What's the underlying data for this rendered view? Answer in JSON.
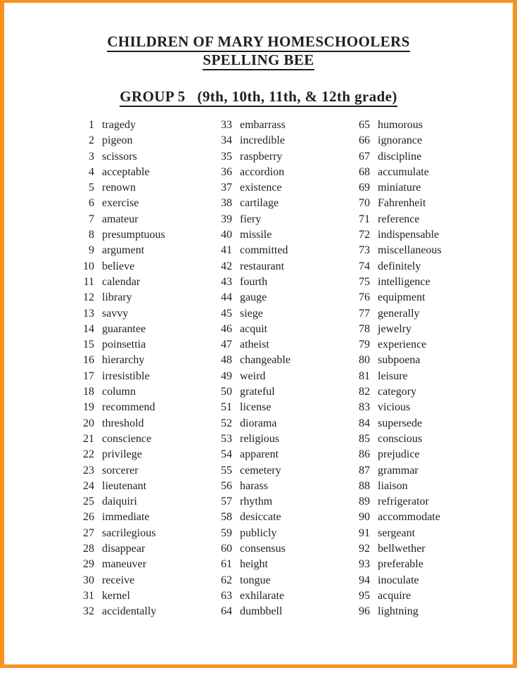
{
  "page": {
    "border_color": "#F7941E",
    "background_color": "#FFFFFF",
    "text_color": "#1F1F1F"
  },
  "header": {
    "title_line1": "CHILDREN OF MARY HOMESCHOOLERS",
    "title_line2": "SPELLING BEE",
    "group_label": "GROUP 5",
    "grade_range": "(9th, 10th, 11th, & 12th grade)"
  },
  "word_list": {
    "columns": [
      {
        "entries": [
          {
            "n": 1,
            "word": "tragedy"
          },
          {
            "n": 2,
            "word": "pigeon"
          },
          {
            "n": 3,
            "word": "scissors"
          },
          {
            "n": 4,
            "word": "acceptable"
          },
          {
            "n": 5,
            "word": "renown"
          },
          {
            "n": 6,
            "word": "exercise"
          },
          {
            "n": 7,
            "word": "amateur"
          },
          {
            "n": 8,
            "word": "presumptuous"
          },
          {
            "n": 9,
            "word": "argument"
          },
          {
            "n": 10,
            "word": "believe"
          },
          {
            "n": 11,
            "word": "calendar"
          },
          {
            "n": 12,
            "word": "library"
          },
          {
            "n": 13,
            "word": "savvy"
          },
          {
            "n": 14,
            "word": "guarantee"
          },
          {
            "n": 15,
            "word": "poinsettia"
          },
          {
            "n": 16,
            "word": "hierarchy"
          },
          {
            "n": 17,
            "word": "irresistible"
          },
          {
            "n": 18,
            "word": "column"
          },
          {
            "n": 19,
            "word": "recommend"
          },
          {
            "n": 20,
            "word": "threshold"
          },
          {
            "n": 21,
            "word": "conscience"
          },
          {
            "n": 22,
            "word": "privilege"
          },
          {
            "n": 23,
            "word": "sorcerer"
          },
          {
            "n": 24,
            "word": "lieutenant"
          },
          {
            "n": 25,
            "word": "daiquiri"
          },
          {
            "n": 26,
            "word": "immediate"
          },
          {
            "n": 27,
            "word": "sacrilegious"
          },
          {
            "n": 28,
            "word": "disappear"
          },
          {
            "n": 29,
            "word": "maneuver"
          },
          {
            "n": 30,
            "word": "receive"
          },
          {
            "n": 31,
            "word": "kernel"
          },
          {
            "n": 32,
            "word": "accidentally"
          }
        ]
      },
      {
        "entries": [
          {
            "n": 33,
            "word": "embarrass"
          },
          {
            "n": 34,
            "word": "incredible"
          },
          {
            "n": 35,
            "word": "raspberry"
          },
          {
            "n": 36,
            "word": "accordion"
          },
          {
            "n": 37,
            "word": "existence"
          },
          {
            "n": 38,
            "word": "cartilage"
          },
          {
            "n": 39,
            "word": "fiery"
          },
          {
            "n": 40,
            "word": "missile"
          },
          {
            "n": 41,
            "word": "committed"
          },
          {
            "n": 42,
            "word": "restaurant"
          },
          {
            "n": 43,
            "word": "fourth"
          },
          {
            "n": 44,
            "word": "gauge"
          },
          {
            "n": 45,
            "word": "siege"
          },
          {
            "n": 46,
            "word": "acquit"
          },
          {
            "n": 47,
            "word": "atheist"
          },
          {
            "n": 48,
            "word": "changeable"
          },
          {
            "n": 49,
            "word": "weird"
          },
          {
            "n": 50,
            "word": "grateful"
          },
          {
            "n": 51,
            "word": "license"
          },
          {
            "n": 52,
            "word": "diorama"
          },
          {
            "n": 53,
            "word": "religious"
          },
          {
            "n": 54,
            "word": "apparent"
          },
          {
            "n": 55,
            "word": "cemetery"
          },
          {
            "n": 56,
            "word": "harass"
          },
          {
            "n": 57,
            "word": "rhythm"
          },
          {
            "n": 58,
            "word": "desiccate"
          },
          {
            "n": 59,
            "word": "publicly"
          },
          {
            "n": 60,
            "word": "consensus"
          },
          {
            "n": 61,
            "word": "height"
          },
          {
            "n": 62,
            "word": "tongue"
          },
          {
            "n": 63,
            "word": "exhilarate"
          },
          {
            "n": 64,
            "word": "dumbbell"
          }
        ]
      },
      {
        "entries": [
          {
            "n": 65,
            "word": "humorous"
          },
          {
            "n": 66,
            "word": "ignorance"
          },
          {
            "n": 67,
            "word": "discipline"
          },
          {
            "n": 68,
            "word": "accumulate"
          },
          {
            "n": 69,
            "word": "miniature"
          },
          {
            "n": 70,
            "word": "Fahrenheit"
          },
          {
            "n": 71,
            "word": "reference"
          },
          {
            "n": 72,
            "word": "indispensable"
          },
          {
            "n": 73,
            "word": "miscellaneous"
          },
          {
            "n": 74,
            "word": "definitely"
          },
          {
            "n": 75,
            "word": "intelligence"
          },
          {
            "n": 76,
            "word": "equipment"
          },
          {
            "n": 77,
            "word": "generally"
          },
          {
            "n": 78,
            "word": "jewelry"
          },
          {
            "n": 79,
            "word": "experience"
          },
          {
            "n": 80,
            "word": "subpoena"
          },
          {
            "n": 81,
            "word": "leisure"
          },
          {
            "n": 82,
            "word": "category"
          },
          {
            "n": 83,
            "word": "vicious"
          },
          {
            "n": 84,
            "word": "supersede"
          },
          {
            "n": 85,
            "word": "conscious"
          },
          {
            "n": 86,
            "word": "prejudice"
          },
          {
            "n": 87,
            "word": "grammar"
          },
          {
            "n": 88,
            "word": "liaison"
          },
          {
            "n": 89,
            "word": "refrigerator"
          },
          {
            "n": 90,
            "word": "accommodate"
          },
          {
            "n": 91,
            "word": "sergeant"
          },
          {
            "n": 92,
            "word": "bellwether"
          },
          {
            "n": 93,
            "word": "preferable"
          },
          {
            "n": 94,
            "word": "inoculate"
          },
          {
            "n": 95,
            "word": "acquire"
          },
          {
            "n": 96,
            "word": "lightning"
          }
        ]
      }
    ]
  }
}
